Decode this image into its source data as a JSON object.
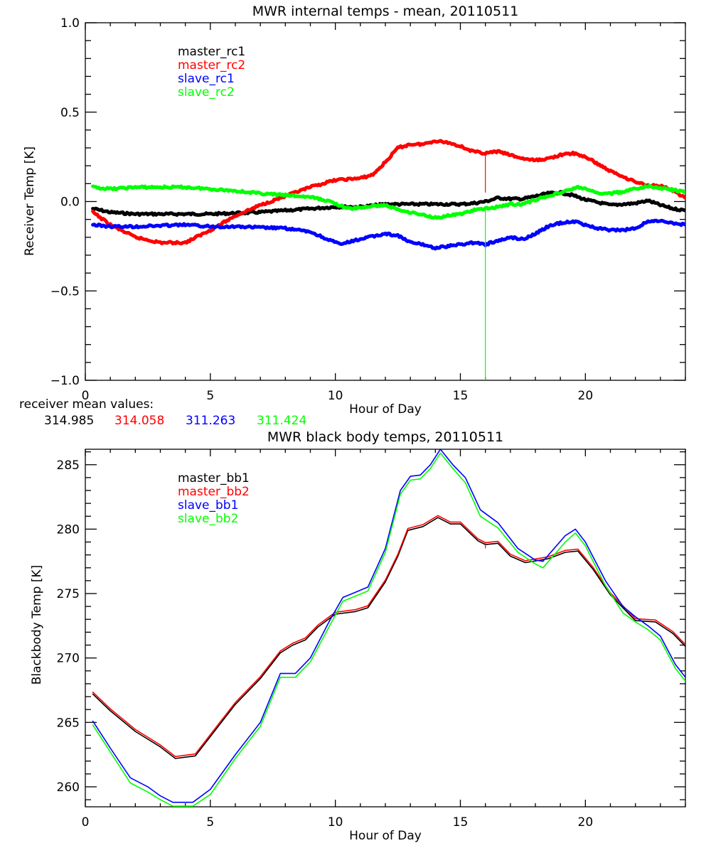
{
  "chart_data": [
    {
      "type": "line",
      "title": "MWR internal temps - mean, 20110511",
      "xlabel": "Hour of Day",
      "ylabel": "Receiver Temp [K]",
      "xlim": [
        0,
        24
      ],
      "ylim": [
        -1.0,
        1.0
      ],
      "xticks": [
        0,
        5,
        10,
        15,
        20
      ],
      "xtick_labels": [
        "0",
        "5",
        "10",
        "15",
        "20"
      ],
      "yticks": [
        -1.0,
        -0.5,
        0.0,
        0.5,
        1.0
      ],
      "ytick_labels": [
        "-1.0",
        "-0.5",
        "0.0",
        "0.5",
        "1.0"
      ],
      "grid": false,
      "legend_position": "top-left",
      "series": [
        {
          "name": "master_rc1",
          "color": "#000000",
          "x": [
            0.3,
            1,
            2,
            3,
            4,
            5,
            6,
            7,
            8,
            9,
            10,
            11,
            12,
            13,
            14,
            15,
            15.5,
            16,
            16.5,
            17,
            17.5,
            18,
            18.5,
            19,
            19.5,
            20,
            20.5,
            21,
            21.5,
            22,
            22.5,
            23,
            23.5,
            24
          ],
          "y": [
            -0.04,
            -0.06,
            -0.07,
            -0.07,
            -0.07,
            -0.07,
            -0.065,
            -0.06,
            -0.05,
            -0.04,
            -0.03,
            -0.03,
            -0.015,
            -0.015,
            -0.015,
            -0.015,
            -0.01,
            0.0,
            0.02,
            0.015,
            0.015,
            0.03,
            0.045,
            0.05,
            0.035,
            0.01,
            -0.005,
            -0.02,
            -0.015,
            -0.01,
            0.005,
            -0.02,
            -0.04,
            -0.05
          ]
        },
        {
          "name": "master_rc2",
          "color": "#ff0000",
          "x": [
            0.3,
            1,
            2,
            3,
            4,
            5,
            6,
            7,
            8,
            9,
            10,
            11,
            11.5,
            12,
            12.5,
            13,
            13.5,
            14,
            14.5,
            15,
            15.5,
            16,
            16.5,
            17,
            17.5,
            18,
            18.5,
            19,
            19.5,
            20,
            20.5,
            21,
            21.5,
            22,
            22.5,
            23,
            23.5,
            24
          ],
          "y": [
            -0.06,
            -0.13,
            -0.2,
            -0.23,
            -0.23,
            -0.16,
            -0.08,
            -0.02,
            0.03,
            0.08,
            0.12,
            0.13,
            0.15,
            0.22,
            0.3,
            0.32,
            0.32,
            0.34,
            0.33,
            0.31,
            0.28,
            0.27,
            0.28,
            0.26,
            0.24,
            0.23,
            0.24,
            0.26,
            0.27,
            0.25,
            0.21,
            0.17,
            0.14,
            0.11,
            0.09,
            0.09,
            0.06,
            0.02
          ],
          "spike": {
            "x": 16.0,
            "y": 0.05
          }
        },
        {
          "name": "slave_rc1",
          "color": "#0000ff",
          "x": [
            0.3,
            1,
            2,
            3,
            4,
            5,
            6,
            7,
            8,
            9,
            9.5,
            10.2,
            11,
            12,
            12.5,
            13,
            13.5,
            14,
            14.5,
            15,
            15.5,
            16,
            16.5,
            17,
            17.5,
            18,
            18.5,
            19,
            19.5,
            20,
            20.5,
            21,
            21.5,
            22,
            22.5,
            23,
            23.5,
            24
          ],
          "y": [
            -0.13,
            -0.14,
            -0.14,
            -0.135,
            -0.13,
            -0.14,
            -0.14,
            -0.145,
            -0.15,
            -0.17,
            -0.2,
            -0.24,
            -0.21,
            -0.18,
            -0.19,
            -0.23,
            -0.24,
            -0.26,
            -0.25,
            -0.24,
            -0.23,
            -0.24,
            -0.22,
            -0.2,
            -0.21,
            -0.18,
            -0.14,
            -0.12,
            -0.11,
            -0.13,
            -0.15,
            -0.16,
            -0.16,
            -0.15,
            -0.11,
            -0.11,
            -0.12,
            -0.13
          ]
        },
        {
          "name": "slave_rc2",
          "color": "#00ff00",
          "x": [
            0.3,
            1,
            2,
            3,
            4,
            5,
            6,
            7,
            8,
            9,
            9.8,
            10.5,
            11,
            11.5,
            12,
            12.5,
            13,
            14,
            15,
            15.5,
            16,
            16.5,
            17,
            17.5,
            18,
            18.5,
            19,
            19.7,
            20,
            20.5,
            21,
            21.5,
            22,
            22.5,
            23,
            23.5,
            24
          ],
          "y": [
            0.08,
            0.07,
            0.08,
            0.08,
            0.08,
            0.07,
            0.06,
            0.045,
            0.035,
            0.025,
            0.0,
            -0.04,
            -0.035,
            -0.025,
            -0.02,
            -0.045,
            -0.06,
            -0.09,
            -0.07,
            -0.05,
            -0.04,
            -0.03,
            -0.015,
            -0.015,
            0.01,
            0.03,
            0.05,
            0.08,
            0.07,
            0.045,
            0.045,
            0.055,
            0.07,
            0.085,
            0.075,
            0.065,
            0.05
          ],
          "spike": {
            "x": 16.0,
            "y": -1.0
          }
        }
      ],
      "footer": {
        "label": "receiver mean values:",
        "values": [
          {
            "text": "314.985",
            "color": "#000000"
          },
          {
            "text": "314.058",
            "color": "#ff0000"
          },
          {
            "text": "311.263",
            "color": "#0000ff"
          },
          {
            "text": "311.424",
            "color": "#00ff00"
          }
        ]
      }
    },
    {
      "type": "line",
      "title": "MWR black body temps, 20110511",
      "xlabel": "Hour of Day",
      "ylabel": "Blackbody Temp [K]",
      "xlim": [
        0,
        24
      ],
      "ylim": [
        258.45,
        286.2
      ],
      "xticks": [
        0,
        5,
        10,
        15,
        20
      ],
      "xtick_labels": [
        "0",
        "5",
        "10",
        "15",
        "20"
      ],
      "yticks": [
        260,
        265,
        270,
        275,
        280,
        285
      ],
      "ytick_labels": [
        "260",
        "265",
        "270",
        "275",
        "280",
        "285"
      ],
      "grid": false,
      "legend_position": "top-left",
      "series": [
        {
          "name": "master_bb1",
          "color": "#000000",
          "x": [
            0.3,
            1,
            2,
            3,
            3.6,
            4.4,
            5,
            6,
            7,
            7.8,
            8.3,
            8.8,
            9.3,
            10,
            10.8,
            11.3,
            12,
            12.5,
            12.9,
            13.5,
            14.1,
            14.6,
            15.0,
            15.7,
            16,
            16.5,
            17,
            17.6,
            18.5,
            19.2,
            19.7,
            20.3,
            21,
            21.6,
            22,
            22.8,
            23.5,
            24
          ],
          "y": [
            267.2,
            265.9,
            264.3,
            263.1,
            262.2,
            262.4,
            263.9,
            266.4,
            268.4,
            270.4,
            271.0,
            271.4,
            272.4,
            273.4,
            273.6,
            273.9,
            275.9,
            277.9,
            279.9,
            280.2,
            280.9,
            280.4,
            280.4,
            279.1,
            278.8,
            278.9,
            277.9,
            277.4,
            277.7,
            278.2,
            278.3,
            276.9,
            274.9,
            273.7,
            272.9,
            272.8,
            271.9,
            270.9
          ]
        },
        {
          "name": "master_bb2",
          "color": "#ff0000",
          "x": [
            0.3,
            1,
            2,
            3,
            3.6,
            4.4,
            5,
            6,
            7,
            7.8,
            8.3,
            8.8,
            9.3,
            10,
            10.8,
            11.3,
            12,
            12.5,
            12.9,
            13.5,
            14.1,
            14.6,
            15.0,
            15.7,
            16,
            16.5,
            17,
            17.6,
            18.5,
            19.2,
            19.7,
            20.3,
            21,
            21.6,
            22,
            22.8,
            23.5,
            24
          ],
          "y": [
            267.35,
            266.05,
            264.45,
            263.25,
            262.35,
            262.55,
            264.05,
            266.55,
            268.55,
            270.55,
            271.15,
            271.55,
            272.55,
            273.55,
            273.75,
            274.05,
            276.05,
            278.05,
            280.05,
            280.35,
            281.05,
            280.55,
            280.55,
            279.25,
            278.95,
            279.05,
            278.05,
            277.55,
            277.85,
            278.35,
            278.45,
            277.05,
            275.05,
            273.85,
            273.05,
            272.95,
            272.05,
            271.05
          ],
          "spike": {
            "x": 16.0,
            "y": 278.5
          }
        },
        {
          "name": "slave_bb1",
          "color": "#0000ff",
          "x": [
            0.3,
            1,
            1.8,
            2.5,
            3,
            3.5,
            4.3,
            5,
            6,
            7,
            7.8,
            8.4,
            9,
            9.8,
            10.3,
            10.8,
            11.3,
            12,
            12.6,
            13.0,
            13.4,
            13.8,
            14.2,
            14.7,
            15.2,
            15.8,
            16.5,
            17.3,
            18,
            18.3,
            19.2,
            19.6,
            20,
            20.8,
            21.5,
            22,
            22.5,
            23,
            23.6,
            24
          ],
          "y": [
            265.1,
            263.0,
            260.7,
            260.0,
            259.3,
            258.8,
            258.8,
            259.8,
            262.5,
            265.0,
            268.8,
            268.8,
            270.0,
            273.0,
            274.7,
            275.1,
            275.5,
            278.5,
            283.0,
            284.1,
            284.2,
            285.0,
            286.2,
            285.0,
            284.0,
            281.5,
            280.5,
            278.5,
            277.6,
            277.5,
            279.5,
            280.0,
            279.0,
            276.0,
            274.0,
            273.2,
            272.5,
            271.7,
            269.5,
            268.5
          ]
        },
        {
          "name": "slave_bb2",
          "color": "#00ff00",
          "x": [
            0.3,
            1,
            1.8,
            2.5,
            3,
            3.5,
            4.3,
            5,
            6,
            7,
            7.8,
            8.4,
            9,
            9.8,
            10.3,
            10.8,
            11.3,
            12,
            12.6,
            13.0,
            13.4,
            13.8,
            14.2,
            14.7,
            15.2,
            15.8,
            16.5,
            17.3,
            18,
            18.3,
            19.2,
            19.6,
            20,
            20.8,
            21.5,
            22,
            22.5,
            23,
            23.6,
            24
          ],
          "y": [
            264.8,
            262.7,
            260.3,
            259.6,
            259.0,
            258.5,
            258.5,
            259.4,
            262.2,
            264.7,
            268.5,
            268.5,
            269.7,
            272.6,
            274.4,
            274.8,
            275.2,
            278.2,
            282.7,
            283.8,
            283.9,
            284.7,
            285.9,
            284.7,
            283.6,
            281.0,
            280.1,
            278.2,
            277.3,
            277.0,
            279.0,
            279.7,
            278.7,
            275.6,
            273.5,
            272.8,
            272.2,
            271.4,
            269.2,
            268.2
          ]
        }
      ]
    }
  ]
}
